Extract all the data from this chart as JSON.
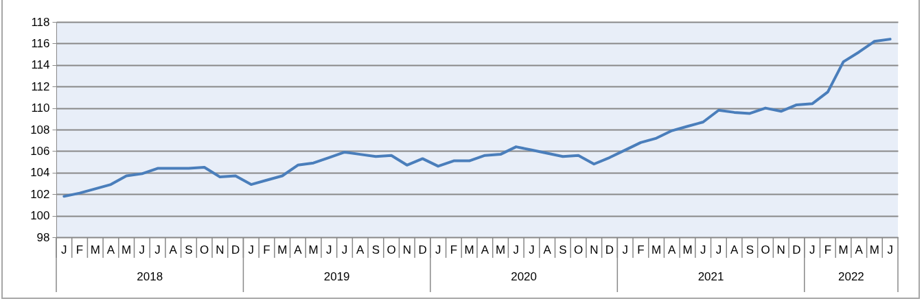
{
  "chart_data": {
    "type": "line",
    "categories": [
      "J",
      "F",
      "M",
      "A",
      "M",
      "J",
      "J",
      "A",
      "S",
      "O",
      "N",
      "D",
      "J",
      "F",
      "M",
      "A",
      "M",
      "J",
      "J",
      "A",
      "S",
      "O",
      "N",
      "D",
      "J",
      "F",
      "M",
      "A",
      "M",
      "J",
      "J",
      "A",
      "S",
      "O",
      "N",
      "D",
      "J",
      "F",
      "M",
      "A",
      "M",
      "J",
      "J",
      "A",
      "S",
      "O",
      "N",
      "D",
      "J",
      "F",
      "M",
      "A",
      "M",
      "J"
    ],
    "series": [
      {
        "color": "#4a7ebb",
        "values": [
          101.8,
          102.1,
          102.5,
          102.9,
          103.7,
          103.9,
          104.4,
          104.4,
          104.4,
          104.5,
          103.6,
          103.7,
          102.9,
          103.3,
          103.7,
          104.7,
          104.9,
          105.4,
          105.9,
          105.7,
          105.5,
          105.6,
          104.7,
          105.3,
          104.6,
          105.1,
          105.1,
          105.6,
          105.7,
          106.4,
          106.1,
          105.8,
          105.5,
          105.6,
          104.8,
          105.4,
          106.1,
          106.8,
          107.2,
          107.9,
          108.3,
          108.7,
          109.8,
          109.6,
          109.5,
          110.0,
          109.7,
          110.3,
          110.4,
          111.5,
          114.3,
          115.2,
          116.2,
          116.4
        ]
      }
    ],
    "ylim": [
      98,
      118
    ],
    "yticks": [
      98,
      100,
      102,
      104,
      106,
      108,
      110,
      112,
      114,
      116,
      118
    ],
    "grid": "y",
    "annotations": [
      "2018",
      "2019",
      "2020",
      "2021",
      "2022"
    ]
  }
}
